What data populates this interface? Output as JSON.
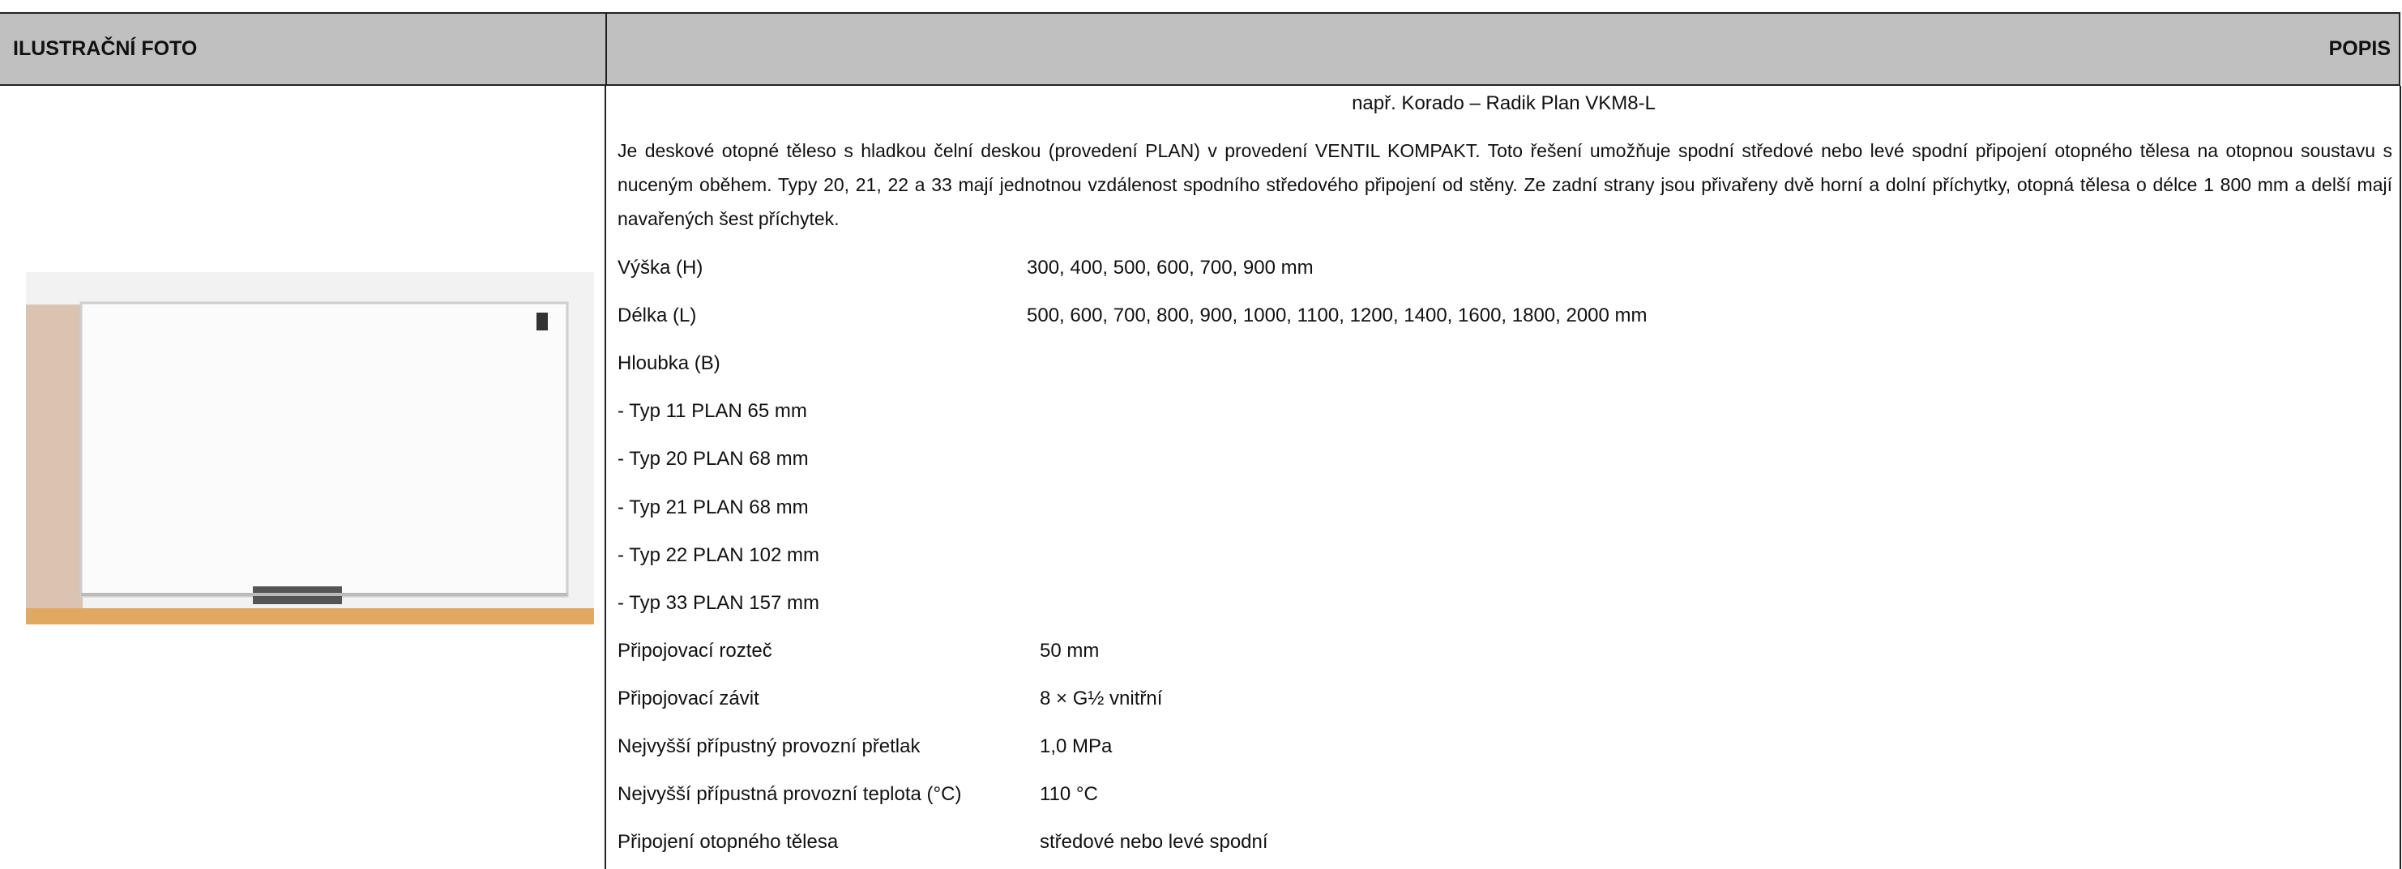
{
  "header": {
    "left": "ILUSTRAČNÍ FOTO",
    "right": "POPIS"
  },
  "description": {
    "subtitle": "např. Korado – Radik Plan VKM8-L",
    "paragraph": "Je deskové otopné těleso s hladkou čelní deskou (provedení PLAN) v provedení VENTIL KOMPAKT. Toto řešení umožňuje spodní středové nebo levé spodní připojení otopného tělesa na otopnou soustavu s nuceným oběhem. Typy 20, 21, 22 a 33 mají jednotnou vzdálenost spodního středového připojení od stěny. Ze zadní strany jsou přivařeny dvě horní a dolní příchytky, otopná tělesa o délce 1 800 mm a delší mají navařených šest příchytek.",
    "specs": [
      {
        "label": "Výška (H)",
        "value": "300, 400, 500, 600, 700, 900 mm"
      },
      {
        "label": "Délka (L)",
        "value": "500, 600, 700, 800, 900, 1000, 1100, 1200, 1400, 1600, 1800, 2000 mm"
      },
      {
        "label": "Hloubka (B)"
      },
      {
        "label": "- Typ 11 PLAN  65 mm"
      },
      {
        "label": "- Typ 20 PLAN 68 mm"
      },
      {
        "label": "- Typ 21 PLAN  68 mm"
      },
      {
        "label": "- Typ 22 PLAN 102 mm"
      },
      {
        "label": "- Typ 33 PLAN 157 mm"
      },
      {
        "label": "Připojovací rozteč",
        "value": "50 mm"
      },
      {
        "label": "Připojovací závit",
        "value": "8 × G½ vnitřní"
      },
      {
        "label": "Nejvyšší přípustný provozní přetlak",
        "value": "1,0 MPa"
      },
      {
        "label": "Nejvyšší přípustná provozní teplota (°C)",
        "value": "110 °C"
      },
      {
        "label": "Připojení otopného tělesa",
        "value": "středové nebo levé spodní"
      }
    ]
  }
}
